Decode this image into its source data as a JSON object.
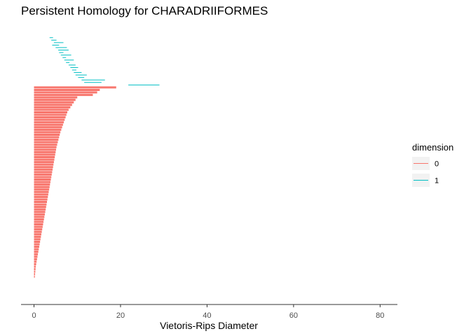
{
  "chart_data": {
    "type": "barcode",
    "title": "Persistent Homology for CHARADRIIFORMES",
    "xlabel": "Vietoris-Rips Diameter",
    "ylabel": "",
    "xlim": [
      -3,
      84
    ],
    "x_ticks": [
      0,
      20,
      40,
      60,
      80
    ],
    "grid": false,
    "legend": {
      "title": "dimension",
      "position": "right",
      "entries": [
        "0",
        "1"
      ]
    },
    "colors": {
      "0": "#F8766D",
      "1": "#00BFC4"
    },
    "series": [
      {
        "name": "1",
        "intervals": [
          [
            3.6,
            4.4
          ],
          [
            4.0,
            5.2
          ],
          [
            4.6,
            6.8
          ],
          [
            4.2,
            5.8
          ],
          [
            5.0,
            7.6
          ],
          [
            5.6,
            8.0
          ],
          [
            5.8,
            6.8
          ],
          [
            6.2,
            8.6
          ],
          [
            6.6,
            7.4
          ],
          [
            7.0,
            9.2
          ],
          [
            7.4,
            8.2
          ],
          [
            8.0,
            9.6
          ],
          [
            8.4,
            10.2
          ],
          [
            8.8,
            9.8
          ],
          [
            9.2,
            11.0
          ],
          [
            9.6,
            12.2
          ],
          [
            10.2,
            11.6
          ],
          [
            11.0,
            16.4
          ],
          [
            11.6,
            15.6
          ],
          [
            21.8,
            29.0
          ]
        ]
      },
      {
        "name": "0",
        "intervals": [
          [
            0,
            19.0
          ],
          [
            0,
            15.2
          ],
          [
            0,
            14.6
          ],
          [
            0,
            13.6
          ],
          [
            0,
            10.0
          ],
          [
            0,
            9.6
          ],
          [
            0,
            9.2
          ],
          [
            0,
            8.8
          ],
          [
            0,
            8.4
          ],
          [
            0,
            8.0
          ],
          [
            0,
            7.7
          ],
          [
            0,
            7.5
          ],
          [
            0,
            7.3
          ],
          [
            0,
            7.1
          ],
          [
            0,
            6.9
          ],
          [
            0,
            6.7
          ],
          [
            0,
            6.5
          ],
          [
            0,
            6.3
          ],
          [
            0,
            6.1
          ],
          [
            0,
            5.95
          ],
          [
            0,
            5.8
          ],
          [
            0,
            5.65
          ],
          [
            0,
            5.5
          ],
          [
            0,
            5.35
          ],
          [
            0,
            5.2
          ],
          [
            0,
            5.1
          ],
          [
            0,
            5.0
          ],
          [
            0,
            4.9
          ],
          [
            0,
            4.8
          ],
          [
            0,
            4.7
          ],
          [
            0,
            4.6
          ],
          [
            0,
            4.5
          ],
          [
            0,
            4.4
          ],
          [
            0,
            4.3
          ],
          [
            0,
            4.2
          ],
          [
            0,
            4.1
          ],
          [
            0,
            4.0
          ],
          [
            0,
            3.9
          ],
          [
            0,
            3.8
          ],
          [
            0,
            3.7
          ],
          [
            0,
            3.6
          ],
          [
            0,
            3.5
          ],
          [
            0,
            3.4
          ],
          [
            0,
            3.3
          ],
          [
            0,
            3.2
          ],
          [
            0,
            3.1
          ],
          [
            0,
            3.0
          ],
          [
            0,
            2.9
          ],
          [
            0,
            2.8
          ],
          [
            0,
            2.7
          ],
          [
            0,
            2.6
          ],
          [
            0,
            2.5
          ],
          [
            0,
            2.4
          ],
          [
            0,
            2.3
          ],
          [
            0,
            2.2
          ],
          [
            0,
            2.1
          ],
          [
            0,
            2.0
          ],
          [
            0,
            1.9
          ],
          [
            0,
            1.8
          ],
          [
            0,
            1.7
          ],
          [
            0,
            1.6
          ],
          [
            0,
            1.5
          ],
          [
            0,
            1.4
          ],
          [
            0,
            1.3
          ],
          [
            0,
            1.2
          ],
          [
            0,
            1.1
          ],
          [
            0,
            1.0
          ],
          [
            0,
            0.9
          ],
          [
            0,
            0.8
          ],
          [
            0,
            0.7
          ],
          [
            0,
            0.6
          ],
          [
            0,
            0.5
          ],
          [
            0,
            0.4
          ],
          [
            0,
            0.35
          ],
          [
            0,
            0.3
          ],
          [
            0,
            0.25
          ],
          [
            0,
            0.2
          ]
        ]
      }
    ]
  }
}
